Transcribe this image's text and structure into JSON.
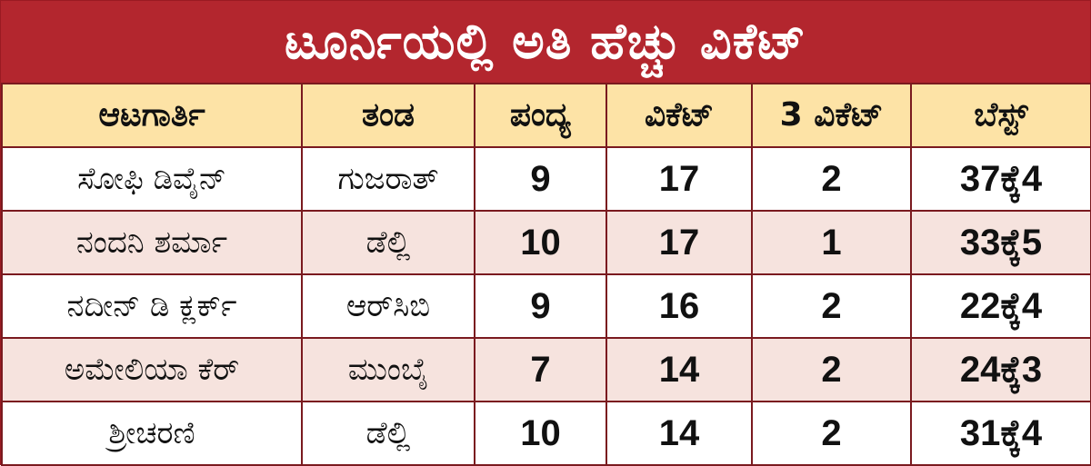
{
  "title": "ಟೂರ್ನಿಯಲ್ಲಿ ಅತಿ ಹೆಚ್ಚು ವಿಕೆಟ್",
  "headers": [
    "ಆಟಗಾರ್ತಿ",
    "ತಂಡ",
    "ಪಂದ್ಯ",
    "ವಿಕೆಟ್",
    "3 ವಿಕೆಟ್",
    "ಬೆಸ್ಟ್"
  ],
  "rows": [
    {
      "player": "ಸೋಫಿ ಡಿವೈನ್",
      "team": "ಗುಜರಾತ್",
      "matches": "9",
      "wickets": "17",
      "three_wickets": "2",
      "best": "37ಕ್ಕೆ4"
    },
    {
      "player": "ನಂದನಿ ಶರ್ಮಾ",
      "team": "ಡೆಲ್ಲಿ",
      "matches": "10",
      "wickets": "17",
      "three_wickets": "1",
      "best": "33ಕ್ಕೆ5"
    },
    {
      "player": "ನದೀನ್ ಡಿ ಕ್ಲರ್ಕ್",
      "team": "ಆರ್‌ಸಿಬಿ",
      "matches": "9",
      "wickets": "16",
      "three_wickets": "2",
      "best": "22ಕ್ಕೆ4"
    },
    {
      "player": "ಅಮೇಲಿಯಾ ಕೆರ್",
      "team": "ಮುಂಬೈ",
      "matches": "7",
      "wickets": "14",
      "three_wickets": "2",
      "best": "24ಕ್ಕೆ3"
    },
    {
      "player": "ಶ್ರೀಚರಣಿ",
      "team": "ಡೆಲ್ಲಿ",
      "matches": "10",
      "wickets": "14",
      "three_wickets": "2",
      "best": "31ಕ್ಕೆ4"
    }
  ],
  "colors": {
    "title_bg": "#b3262e",
    "header_bg": "#fde3a6",
    "row_alt_bg": "#f6e3de",
    "border": "#7a1a1f"
  }
}
